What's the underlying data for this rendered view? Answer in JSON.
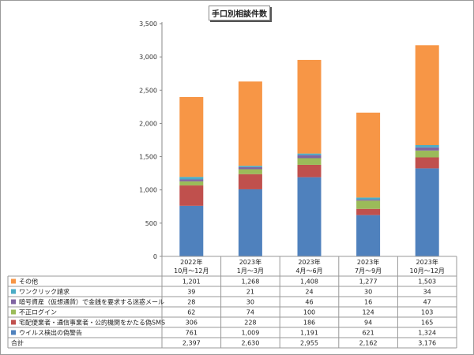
{
  "chart_data": {
    "type": "bar",
    "stacked": true,
    "title": "手口別相談件数",
    "categories": [
      [
        "2022年",
        "10月～12月"
      ],
      [
        "2023年",
        "1月～3月"
      ],
      [
        "2023年",
        "4月～6月"
      ],
      [
        "2023年",
        "7月～9月"
      ],
      [
        "2023年",
        "10月～12月"
      ]
    ],
    "series": [
      {
        "name": "ウイルス検出の偽警告",
        "color": "#4f81bd",
        "values": [
          761,
          1009,
          1191,
          621,
          1324
        ]
      },
      {
        "name": "宅配便業者・通信事業者・公的機関をかたる偽SMS",
        "color": "#c0504d",
        "values": [
          306,
          228,
          186,
          94,
          165
        ]
      },
      {
        "name": "不正ログイン",
        "color": "#9bbb59",
        "values": [
          62,
          74,
          100,
          124,
          103
        ]
      },
      {
        "name": "暗号資産（仮想通貨）で金銭を要求する迷惑メール",
        "color": "#8064a2",
        "values": [
          28,
          30,
          46,
          16,
          47
        ]
      },
      {
        "name": "ワンクリック請求",
        "color": "#4bacc6",
        "values": [
          39,
          21,
          24,
          30,
          34
        ]
      },
      {
        "name": "その他",
        "color": "#f79646",
        "values": [
          1201,
          1268,
          1408,
          1277,
          1503
        ]
      }
    ],
    "table_rows_order": [
      "その他",
      "ワンクリック請求",
      "暗号資産（仮想通貨）で金銭を要求する迷惑メール",
      "不正ログイン",
      "宅配便業者・通信事業者・公的機関をかたる偽SMS",
      "ウイルス検出の偽警告"
    ],
    "totals_label": "合計",
    "totals": [
      "2,397",
      "2,630",
      "2,955",
      "2,162",
      "3,176"
    ],
    "ylim": [
      0,
      3500
    ],
    "yticks": [
      "0",
      "500",
      "1,000",
      "1,500",
      "2,000",
      "2,500",
      "3,000",
      "3,500"
    ],
    "grid": false,
    "legend": "data-table"
  }
}
